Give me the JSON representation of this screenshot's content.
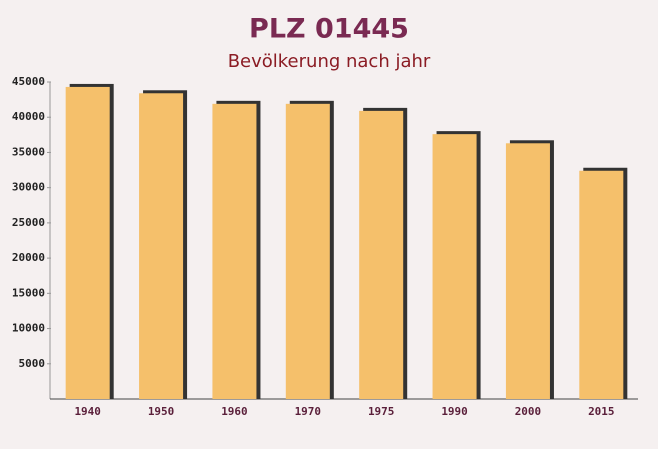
{
  "chart_data": {
    "type": "bar",
    "title": "PLZ 01445",
    "subtitle": "Bevölkerung nach jahr",
    "categories": [
      "1940",
      "1950",
      "1960",
      "1970",
      "1975",
      "1990",
      "2000",
      "2015"
    ],
    "values": [
      44300,
      43400,
      41900,
      41900,
      40900,
      37600,
      36300,
      32400
    ],
    "color": "#f5c06b",
    "ylim": [
      0,
      45000
    ],
    "yticks": [
      5000,
      10000,
      15000,
      20000,
      25000,
      30000,
      35000,
      40000,
      45000
    ],
    "grid": false
  }
}
